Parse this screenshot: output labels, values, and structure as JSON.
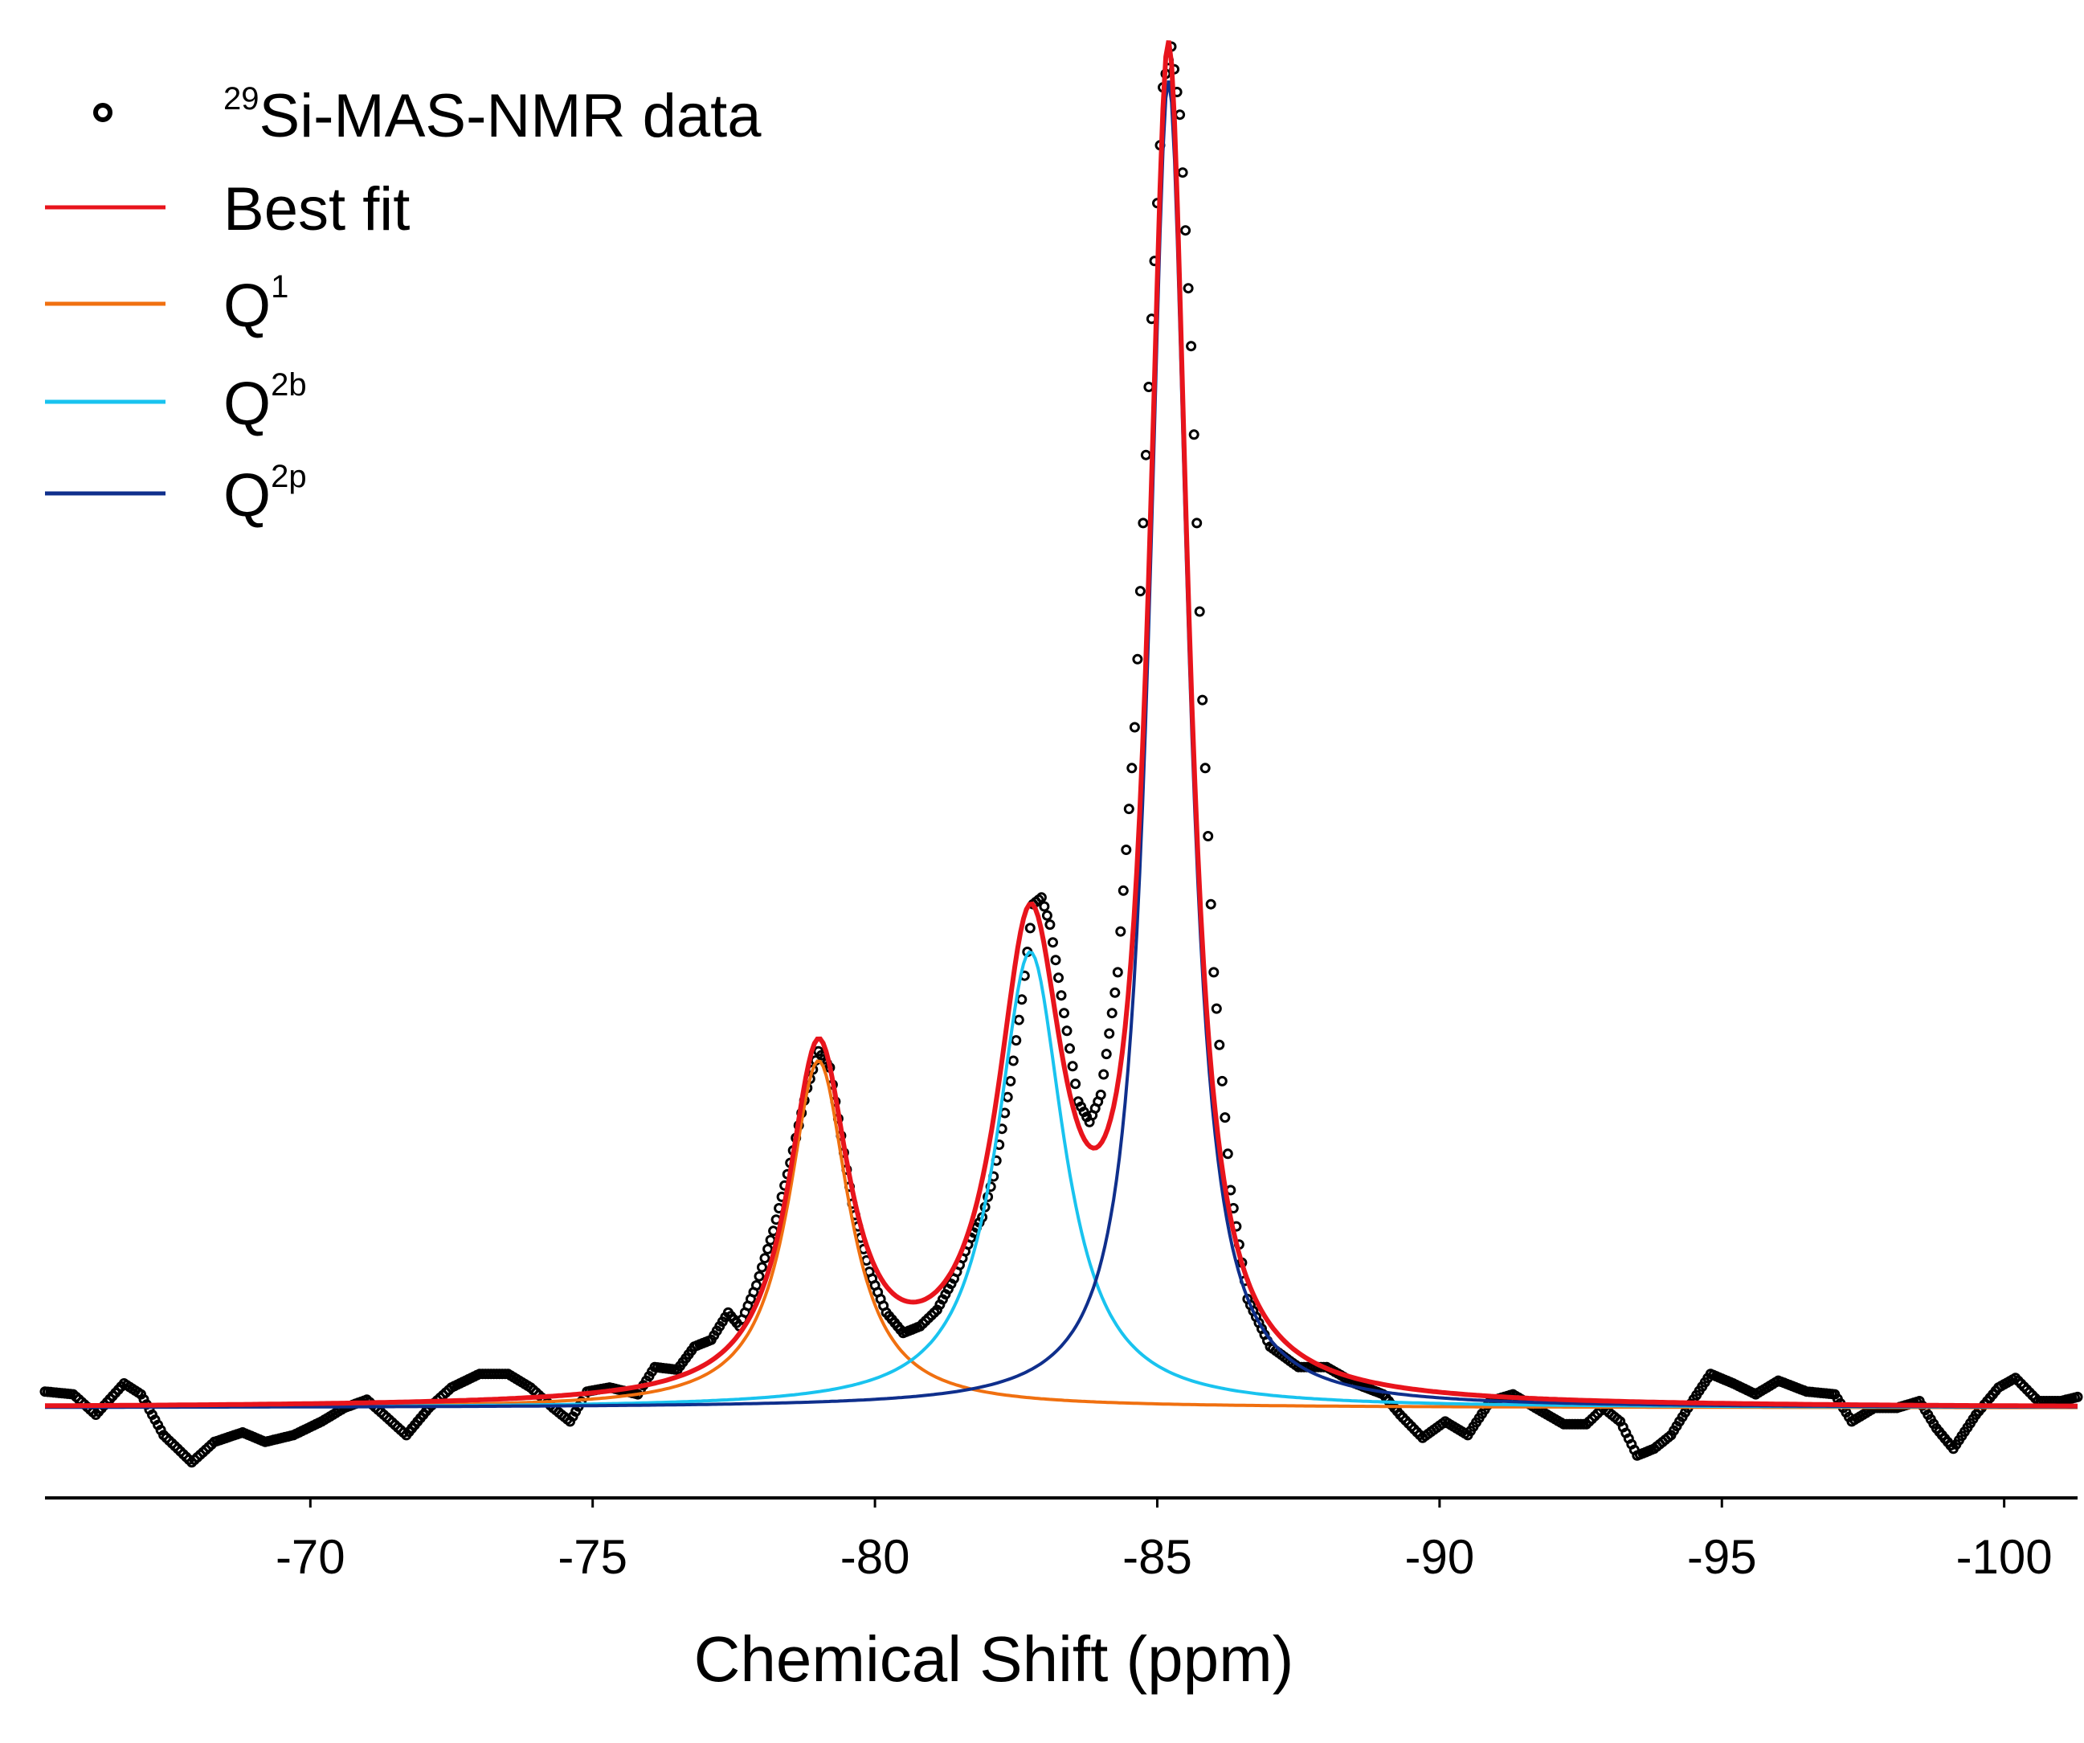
{
  "chart_data": {
    "type": "line",
    "title": "",
    "xlabel": "Chemical Shift (ppm)",
    "ylabel": "",
    "x_axis_reversed": true,
    "xlim": [
      -65.3,
      -101.3
    ],
    "ylim": [
      -0.06,
      1.0
    ],
    "xticks": [
      -70,
      -75,
      -80,
      -85,
      -90,
      -95,
      -100
    ],
    "xtick_labels": [
      "-70",
      "-75",
      "-80",
      "-85",
      "-90",
      "-95",
      "-100"
    ],
    "grid": false,
    "legend_position": "top-left",
    "legend": [
      {
        "key": "data",
        "base": "Si-MAS-NMR data",
        "sup": "29",
        "sup_first": true,
        "style": "circle-marker",
        "color": "#000000"
      },
      {
        "key": "fit",
        "base": "Best fit",
        "sup": "",
        "sup_first": false,
        "style": "line",
        "color": "#e8141c"
      },
      {
        "key": "q1",
        "base": "Q",
        "sup": "1",
        "sup_first": false,
        "style": "line",
        "color": "#f07010"
      },
      {
        "key": "q2b",
        "base": "Q",
        "sup": "2b",
        "sup_first": false,
        "style": "line",
        "color": "#19c3ef"
      },
      {
        "key": "q2p",
        "base": "Q",
        "sup": "2p",
        "sup_first": false,
        "style": "line",
        "color": "#0f2f8c"
      }
    ],
    "components": [
      {
        "name": "Q1",
        "center": -79.0,
        "amplitude": 0.255,
        "hwhm": 0.65,
        "color": "#f07010"
      },
      {
        "name": "Q2b",
        "center": -82.75,
        "amplitude": 0.335,
        "hwhm": 0.72,
        "color": "#19c3ef"
      },
      {
        "name": "Q2p",
        "center": -85.2,
        "amplitude": 0.975,
        "hwhm": 0.42,
        "color": "#0f2f8c"
      }
    ],
    "best_fit_color": "#e8141c",
    "data_points_raw": [
      [
        -65.3,
        0.012
      ],
      [
        -65.8,
        0.01
      ],
      [
        -66.2,
        -0.005
      ],
      [
        -66.7,
        0.018
      ],
      [
        -67.0,
        0.01
      ],
      [
        -67.4,
        -0.02
      ],
      [
        -67.9,
        -0.04
      ],
      [
        -68.3,
        -0.025
      ],
      [
        -68.8,
        -0.018
      ],
      [
        -69.2,
        -0.025
      ],
      [
        -69.7,
        -0.02
      ],
      [
        -70.2,
        -0.01
      ],
      [
        -70.6,
        0.0
      ],
      [
        -71.0,
        0.006
      ],
      [
        -71.3,
        -0.005
      ],
      [
        -71.7,
        -0.02
      ],
      [
        -72.1,
        0.0
      ],
      [
        -72.5,
        0.015
      ],
      [
        -73.0,
        0.025
      ],
      [
        -73.5,
        0.025
      ],
      [
        -73.9,
        0.015
      ],
      [
        -74.3,
        0.0
      ],
      [
        -74.6,
        -0.01
      ],
      [
        -74.9,
        0.012
      ],
      [
        -75.3,
        0.015
      ],
      [
        -75.8,
        0.01
      ],
      [
        -76.1,
        0.03
      ],
      [
        -76.5,
        0.028
      ],
      [
        -76.8,
        0.045
      ],
      [
        -77.1,
        0.05
      ],
      [
        -77.4,
        0.07
      ],
      [
        -77.6,
        0.06
      ],
      [
        -77.9,
        0.09
      ],
      [
        -78.2,
        0.13
      ],
      [
        -78.5,
        0.18
      ],
      [
        -78.8,
        0.235
      ],
      [
        -79.0,
        0.262
      ],
      [
        -79.2,
        0.25
      ],
      [
        -79.4,
        0.2
      ],
      [
        -79.6,
        0.15
      ],
      [
        -79.9,
        0.1
      ],
      [
        -80.2,
        0.07
      ],
      [
        -80.5,
        0.055
      ],
      [
        -80.8,
        0.06
      ],
      [
        -81.1,
        0.072
      ],
      [
        -81.4,
        0.095
      ],
      [
        -81.7,
        0.125
      ],
      [
        -81.9,
        0.14
      ],
      [
        -82.1,
        0.17
      ],
      [
        -82.4,
        0.24
      ],
      [
        -82.6,
        0.3
      ],
      [
        -82.8,
        0.37
      ],
      [
        -82.95,
        0.375
      ],
      [
        -83.1,
        0.355
      ],
      [
        -83.35,
        0.29
      ],
      [
        -83.6,
        0.225
      ],
      [
        -83.8,
        0.21
      ],
      [
        -84.0,
        0.23
      ],
      [
        -84.3,
        0.32
      ],
      [
        -84.6,
        0.5
      ],
      [
        -84.9,
        0.8
      ],
      [
        -85.1,
        0.97
      ],
      [
        -85.25,
        1.0
      ],
      [
        -85.4,
        0.95
      ],
      [
        -85.6,
        0.78
      ],
      [
        -85.8,
        0.52
      ],
      [
        -86.0,
        0.32
      ],
      [
        -86.3,
        0.16
      ],
      [
        -86.6,
        0.08
      ],
      [
        -87.0,
        0.045
      ],
      [
        -87.5,
        0.03
      ],
      [
        -88.0,
        0.03
      ],
      [
        -88.5,
        0.018
      ],
      [
        -89.0,
        0.01
      ],
      [
        -89.3,
        -0.005
      ],
      [
        -89.7,
        -0.022
      ],
      [
        -90.1,
        -0.01
      ],
      [
        -90.5,
        -0.02
      ],
      [
        -90.9,
        0.005
      ],
      [
        -91.3,
        0.01
      ],
      [
        -91.7,
        0.0
      ],
      [
        -92.2,
        -0.012
      ],
      [
        -92.6,
        -0.012
      ],
      [
        -92.9,
        0.0
      ],
      [
        -93.2,
        -0.01
      ],
      [
        -93.5,
        -0.035
      ],
      [
        -93.8,
        -0.03
      ],
      [
        -94.1,
        -0.02
      ],
      [
        -94.4,
        0.0
      ],
      [
        -94.8,
        0.025
      ],
      [
        -95.2,
        0.018
      ],
      [
        -95.6,
        0.01
      ],
      [
        -96.0,
        0.02
      ],
      [
        -96.5,
        0.012
      ],
      [
        -97.0,
        0.01
      ],
      [
        -97.3,
        -0.01
      ],
      [
        -97.7,
        0.0
      ],
      [
        -98.1,
        0.0
      ],
      [
        -98.5,
        0.005
      ],
      [
        -98.8,
        -0.015
      ],
      [
        -99.1,
        -0.03
      ],
      [
        -99.5,
        -0.005
      ],
      [
        -99.9,
        0.015
      ],
      [
        -100.2,
        0.022
      ],
      [
        -100.6,
        0.005
      ],
      [
        -101.0,
        0.005
      ],
      [
        -101.3,
        0.008
      ]
    ]
  }
}
